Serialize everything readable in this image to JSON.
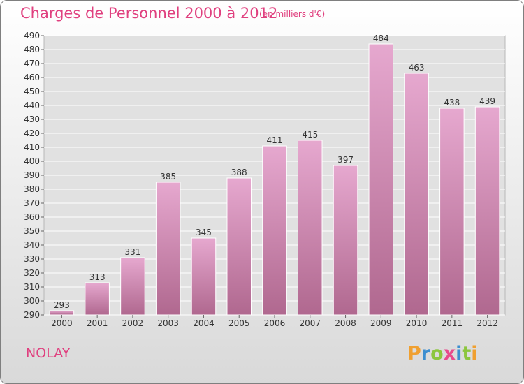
{
  "title": "Charges de Personnel 2000 à 2012",
  "subtitle": "(en milliers d'€)",
  "commune": "NOLAY",
  "logo": {
    "text": "Proxiti",
    "letters": [
      {
        "char": "P",
        "color": "#f0a030"
      },
      {
        "char": "r",
        "color": "#3c8ed0"
      },
      {
        "char": "o",
        "color": "#8cc63e"
      },
      {
        "char": "x",
        "color": "#e84a8c"
      },
      {
        "char": "i",
        "color": "#3c8ed0"
      },
      {
        "char": "t",
        "color": "#8cc63e"
      },
      {
        "char": "i",
        "color": "#f0a030"
      }
    ]
  },
  "colors": {
    "accent": "#e0407f",
    "bar_top": "#e6a8cf",
    "bar_bottom": "#b0688f",
    "grid": "#ffffff"
  },
  "chart_data": {
    "type": "bar",
    "categories": [
      "2000",
      "2001",
      "2002",
      "2003",
      "2004",
      "2005",
      "2006",
      "2007",
      "2008",
      "2009",
      "2010",
      "2011",
      "2012"
    ],
    "values": [
      293,
      313,
      331,
      385,
      345,
      388,
      411,
      415,
      397,
      484,
      463,
      438,
      439
    ],
    "ylim": [
      290,
      490
    ],
    "yticks": [
      290,
      300,
      310,
      320,
      330,
      340,
      350,
      360,
      370,
      380,
      390,
      400,
      410,
      420,
      430,
      440,
      450,
      460,
      470,
      480,
      490
    ],
    "grid": true,
    "data_labels": true
  }
}
